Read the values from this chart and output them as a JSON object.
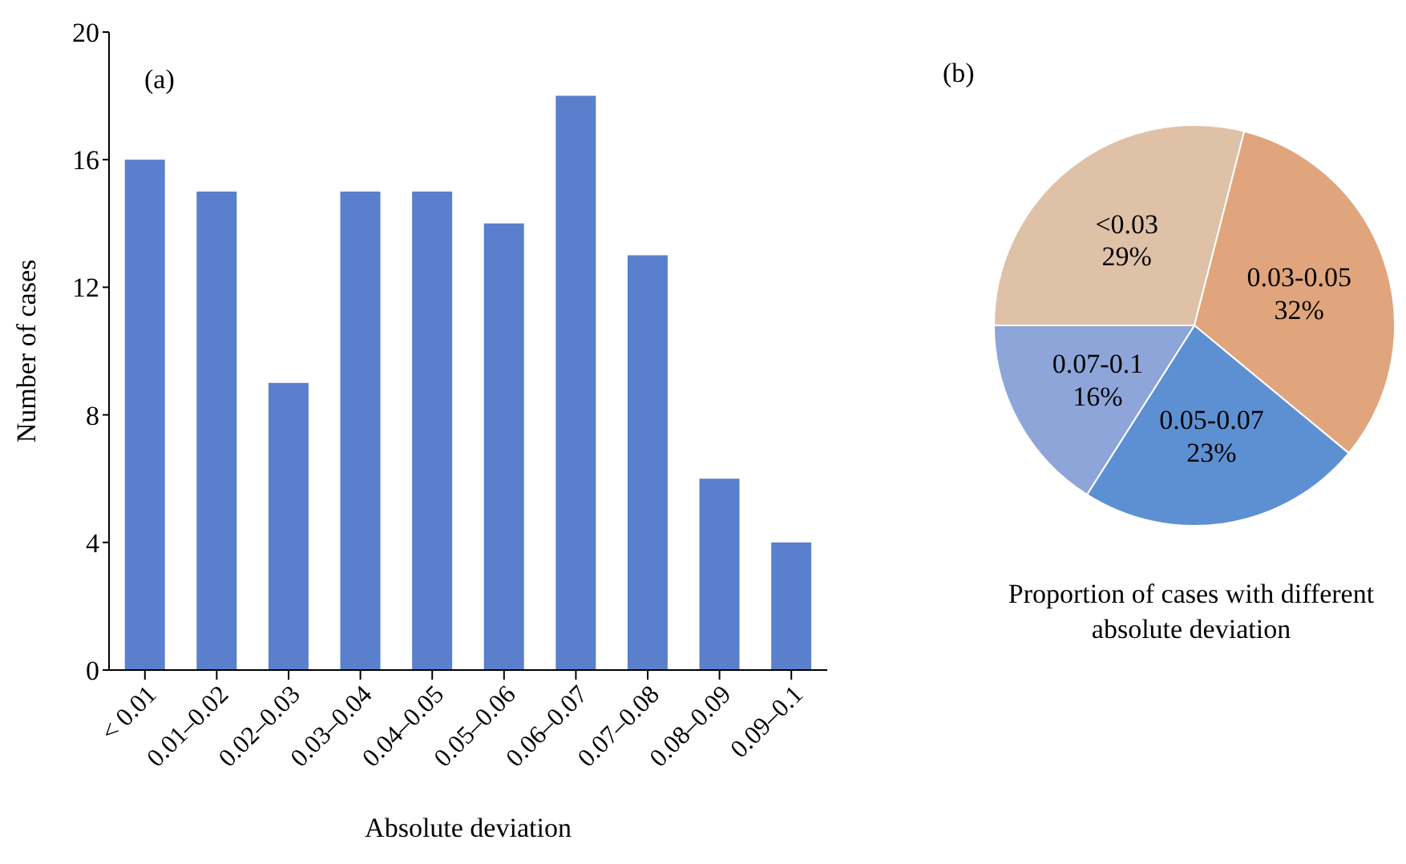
{
  "chart_data": [
    {
      "type": "bar",
      "categories": [
        "< 0.01",
        "0.01–0.02",
        "0.02–0.03",
        "0.03–0.04",
        "0.04–0.05",
        "0.05–0.06",
        "0.06–0.07",
        "0.07–0.08",
        "0.08–0.09",
        "0.09–0.1"
      ],
      "values": [
        16,
        15,
        9,
        15,
        15,
        14,
        18,
        13,
        6,
        4
      ],
      "color": "#5a7fcc",
      "ylim": [
        0,
        20
      ],
      "yticks": [
        0,
        4,
        8,
        12,
        16,
        20
      ],
      "xlabel": "Absolute deviation",
      "ylabel": "Number of cases",
      "grid": false,
      "legend": false,
      "annotations": [
        "(a)"
      ]
    },
    {
      "type": "pie",
      "categories": [
        "<0.03",
        "0.03-0.05",
        "0.05-0.07",
        "0.07-0.1"
      ],
      "values": [
        29,
        32,
        23,
        16
      ],
      "colors": [
        "#dfc1a8",
        "#e0a57c",
        "#5d90d2",
        "#8da5d8"
      ],
      "value_labels": [
        "29%",
        "32%",
        "23%",
        "16%"
      ],
      "legend": false,
      "annotations": [
        "(b)",
        "Proportion of cases with different absolute deviation"
      ]
    }
  ]
}
